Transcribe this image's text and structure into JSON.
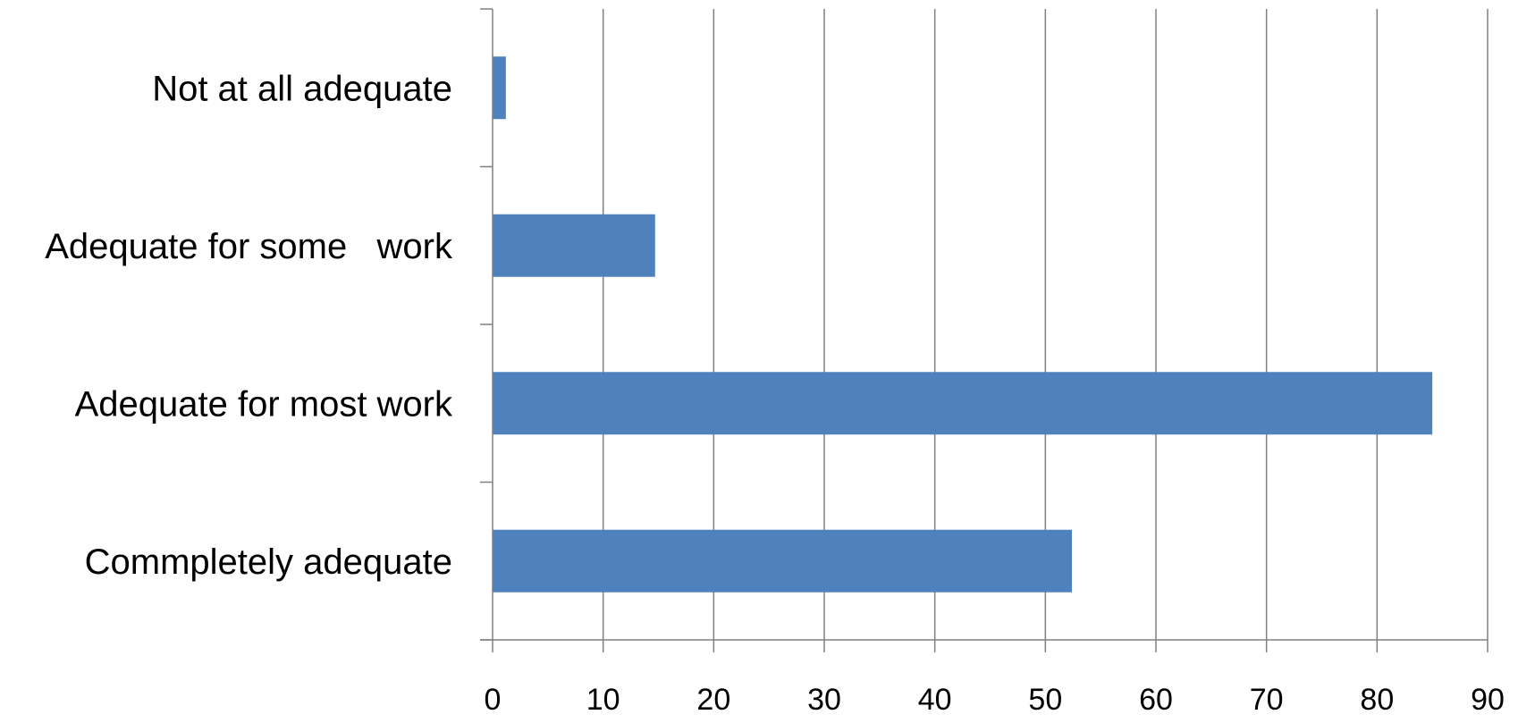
{
  "chart_data": {
    "type": "bar",
    "orientation": "horizontal",
    "title": "",
    "xlabel": "",
    "ylabel": "",
    "categories": [
      "Not at all adequate",
      "Adequate for some   work",
      "Adequate for most work",
      "Commpletely adequate"
    ],
    "values": [
      1.2,
      14.7,
      85,
      52.4
    ],
    "xlim": [
      0,
      90
    ],
    "x_ticks": [
      0,
      10,
      20,
      30,
      40,
      50,
      60,
      70,
      80,
      90
    ],
    "grid": "vertical major gridlines",
    "legend": "none",
    "bar_color": "#4f81bd",
    "grid_color": "#808080"
  }
}
